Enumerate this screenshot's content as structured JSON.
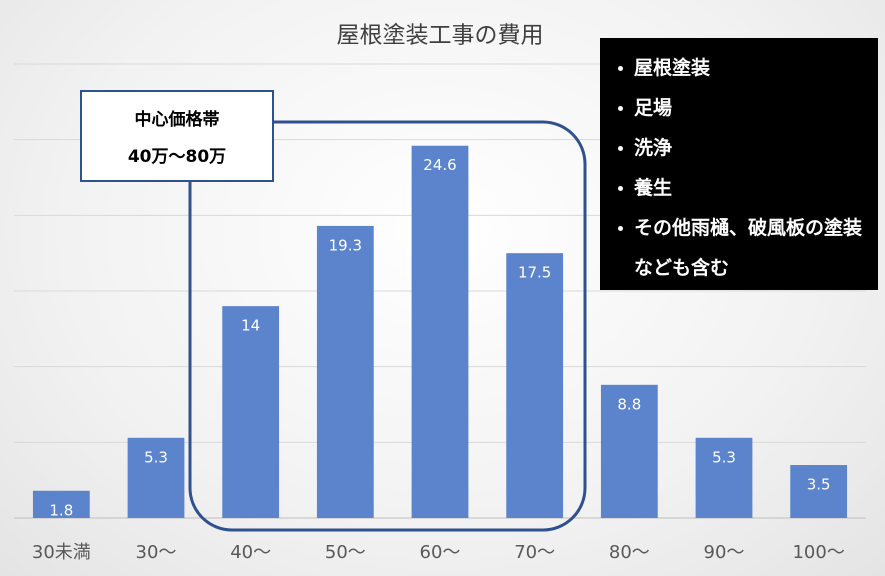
{
  "chart_data": {
    "type": "bar",
    "title": "屋根塗装工事の費用",
    "categories": [
      "30未満",
      "30～",
      "40～",
      "50～",
      "60～",
      "70～",
      "80～",
      "90～",
      "100～"
    ],
    "values": [
      1.8,
      5.3,
      14,
      19.3,
      24.6,
      17.5,
      8.8,
      5.3,
      3.5
    ],
    "color": "#5b84cc",
    "ylim": [
      0,
      30
    ],
    "yticks": [
      0,
      5,
      10,
      15,
      20,
      25,
      30
    ],
    "grid": true,
    "annotations": {
      "price_range": [
        "中心価格帯",
        "40万～80万"
      ],
      "includes": [
        "屋根塗装",
        "足場",
        "洗浄",
        "養生",
        "その他雨樋、破風板の塗装なども含む"
      ]
    }
  }
}
